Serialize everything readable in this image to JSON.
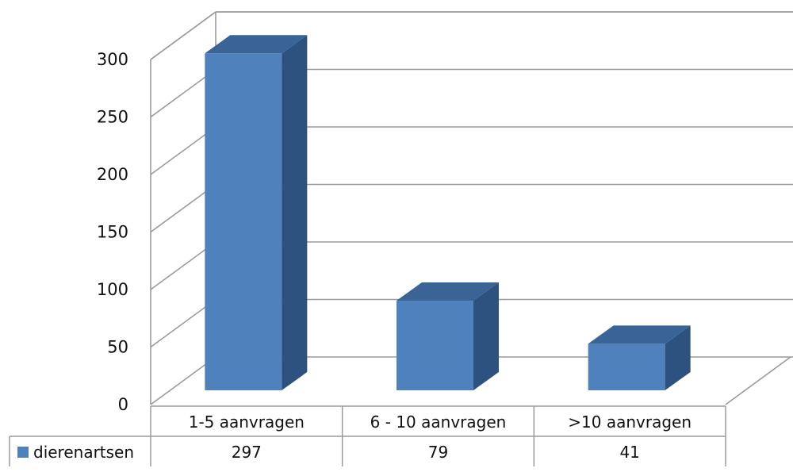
{
  "chart_data": {
    "type": "bar",
    "style": "3d-column-with-data-table",
    "categories": [
      "1-5 aanvragen",
      "6 - 10 aanvragen",
      ">10 aanvragen"
    ],
    "series": [
      {
        "name": "dierenartsen",
        "values": [
          297,
          79,
          41
        ],
        "color": "#4F81BD"
      }
    ],
    "y_ticks": [
      "0",
      "50",
      "100",
      "150",
      "200",
      "250",
      "300"
    ],
    "ylim": [
      0,
      300
    ],
    "grid": true,
    "legend": "data-table-left",
    "table_values": [
      "297",
      "79",
      "41"
    ],
    "colors": {
      "bar_front": "#4F81BD",
      "bar_side": "#2E527F",
      "bar_top": "#3A6396",
      "grid": "#9A9A9A"
    }
  }
}
